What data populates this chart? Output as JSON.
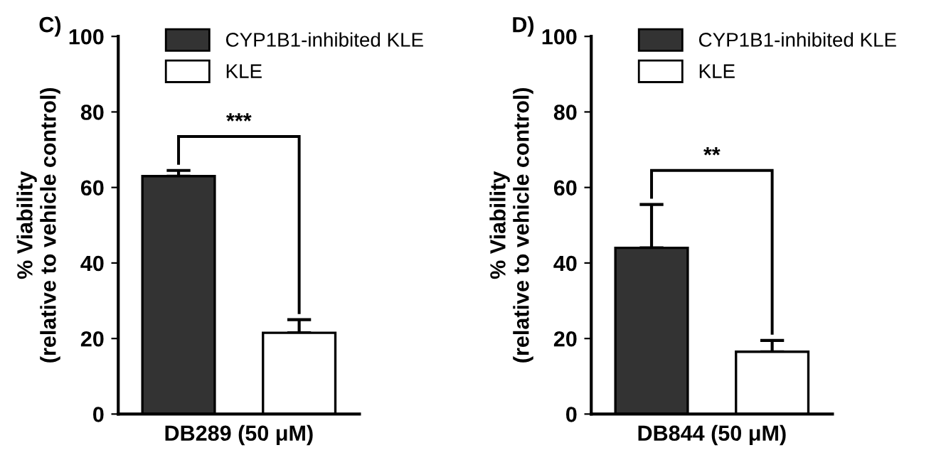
{
  "chart_data": [
    {
      "type": "bar",
      "title": "C)",
      "xlabel": "DB289 (50 μM)",
      "ylabel": "% Viability\n(relative to vehicle control)",
      "categories": [
        null
      ],
      "series": [
        {
          "name": "CYP1B1-inhibited KLE",
          "color": "#333333",
          "values": [
            63
          ],
          "errors": [
            [
              63,
              64.5
            ]
          ]
        },
        {
          "name": "KLE",
          "color": "#ffffff",
          "values": [
            21.5
          ],
          "errors": [
            [
              21.5,
              25
            ]
          ]
        }
      ],
      "ylim": [
        0,
        100
      ],
      "yticks": [
        0,
        20,
        40,
        60,
        80,
        100
      ],
      "grid": false,
      "legend": "top right",
      "annotations": [
        "***"
      ]
    },
    {
      "type": "bar",
      "title": "D)",
      "xlabel": "DB844 (50 μM)",
      "ylabel": "% Viability\n(relative to vehicle control)",
      "categories": [
        null
      ],
      "series": [
        {
          "name": "CYP1B1-inhibited KLE",
          "color": "#333333",
          "values": [
            44
          ],
          "errors": [
            [
              44,
              55.5
            ]
          ]
        },
        {
          "name": "KLE",
          "color": "#ffffff",
          "values": [
            16.5
          ],
          "errors": [
            [
              16.5,
              19.5
            ]
          ]
        }
      ],
      "ylim": [
        0,
        100
      ],
      "yticks": [
        0,
        20,
        40,
        60,
        80,
        100
      ],
      "grid": false,
      "legend": "top right",
      "annotations": [
        "**"
      ]
    }
  ]
}
